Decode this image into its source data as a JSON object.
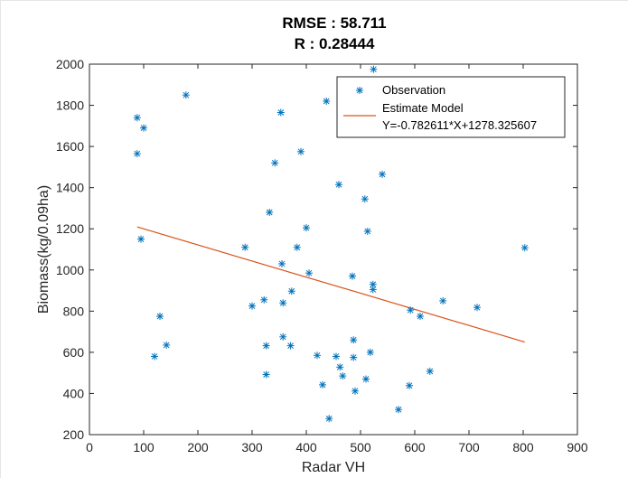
{
  "chart_data": {
    "type": "scatter",
    "title": "RMSE : 58.711",
    "subtitle": "R : 0.28444",
    "xlabel": "Radar VH",
    "ylabel": "Biomass(kg/0.09ha)",
    "xlim": [
      0,
      900
    ],
    "ylim": [
      200,
      2000
    ],
    "xticks": [
      0,
      100,
      200,
      300,
      400,
      500,
      600,
      700,
      800,
      900
    ],
    "yticks": [
      200,
      400,
      600,
      800,
      1000,
      1200,
      1400,
      1600,
      1800,
      2000
    ],
    "grid": false,
    "legend_position": "top-right",
    "legend": {
      "observation": "Observation",
      "model": "Estimate Model",
      "equation": "Y=-0.782611*X+1278.325607"
    },
    "colors": {
      "observation": "#0072bd",
      "model": "#d95319"
    },
    "series": [
      {
        "name": "Observation",
        "points": [
          [
            88,
            1740
          ],
          [
            100,
            1690
          ],
          [
            88,
            1565
          ],
          [
            95,
            1150
          ],
          [
            178,
            1850
          ],
          [
            120,
            580
          ],
          [
            130,
            775
          ],
          [
            142,
            635
          ],
          [
            287,
            1110
          ],
          [
            300,
            825
          ],
          [
            322,
            855
          ],
          [
            326,
            632
          ],
          [
            326,
            492
          ],
          [
            332,
            1280
          ],
          [
            342,
            1520
          ],
          [
            353,
            1765
          ],
          [
            355,
            1030
          ],
          [
            357,
            675
          ],
          [
            357,
            840
          ],
          [
            371,
            632
          ],
          [
            373,
            897
          ],
          [
            383,
            1110
          ],
          [
            390,
            1575
          ],
          [
            400,
            1205
          ],
          [
            405,
            985
          ],
          [
            420,
            585
          ],
          [
            430,
            442
          ],
          [
            437,
            1820
          ],
          [
            442,
            278
          ],
          [
            455,
            580
          ],
          [
            460,
            1415
          ],
          [
            462,
            528
          ],
          [
            467,
            485
          ],
          [
            485,
            970
          ],
          [
            487,
            660
          ],
          [
            487,
            575
          ],
          [
            490,
            412
          ],
          [
            508,
            1345
          ],
          [
            510,
            470
          ],
          [
            513,
            1188
          ],
          [
            518,
            600
          ],
          [
            523,
            930
          ],
          [
            523,
            905
          ],
          [
            524,
            1975
          ],
          [
            540,
            1465
          ],
          [
            570,
            322
          ],
          [
            590,
            438
          ],
          [
            592,
            805
          ],
          [
            610,
            775
          ],
          [
            628,
            508
          ],
          [
            652,
            850
          ],
          [
            715,
            818
          ],
          [
            803,
            1108
          ]
        ]
      },
      {
        "name": "Estimate Model",
        "line": [
          [
            88,
            1209.4
          ],
          [
            803,
            649.9
          ]
        ]
      }
    ]
  }
}
